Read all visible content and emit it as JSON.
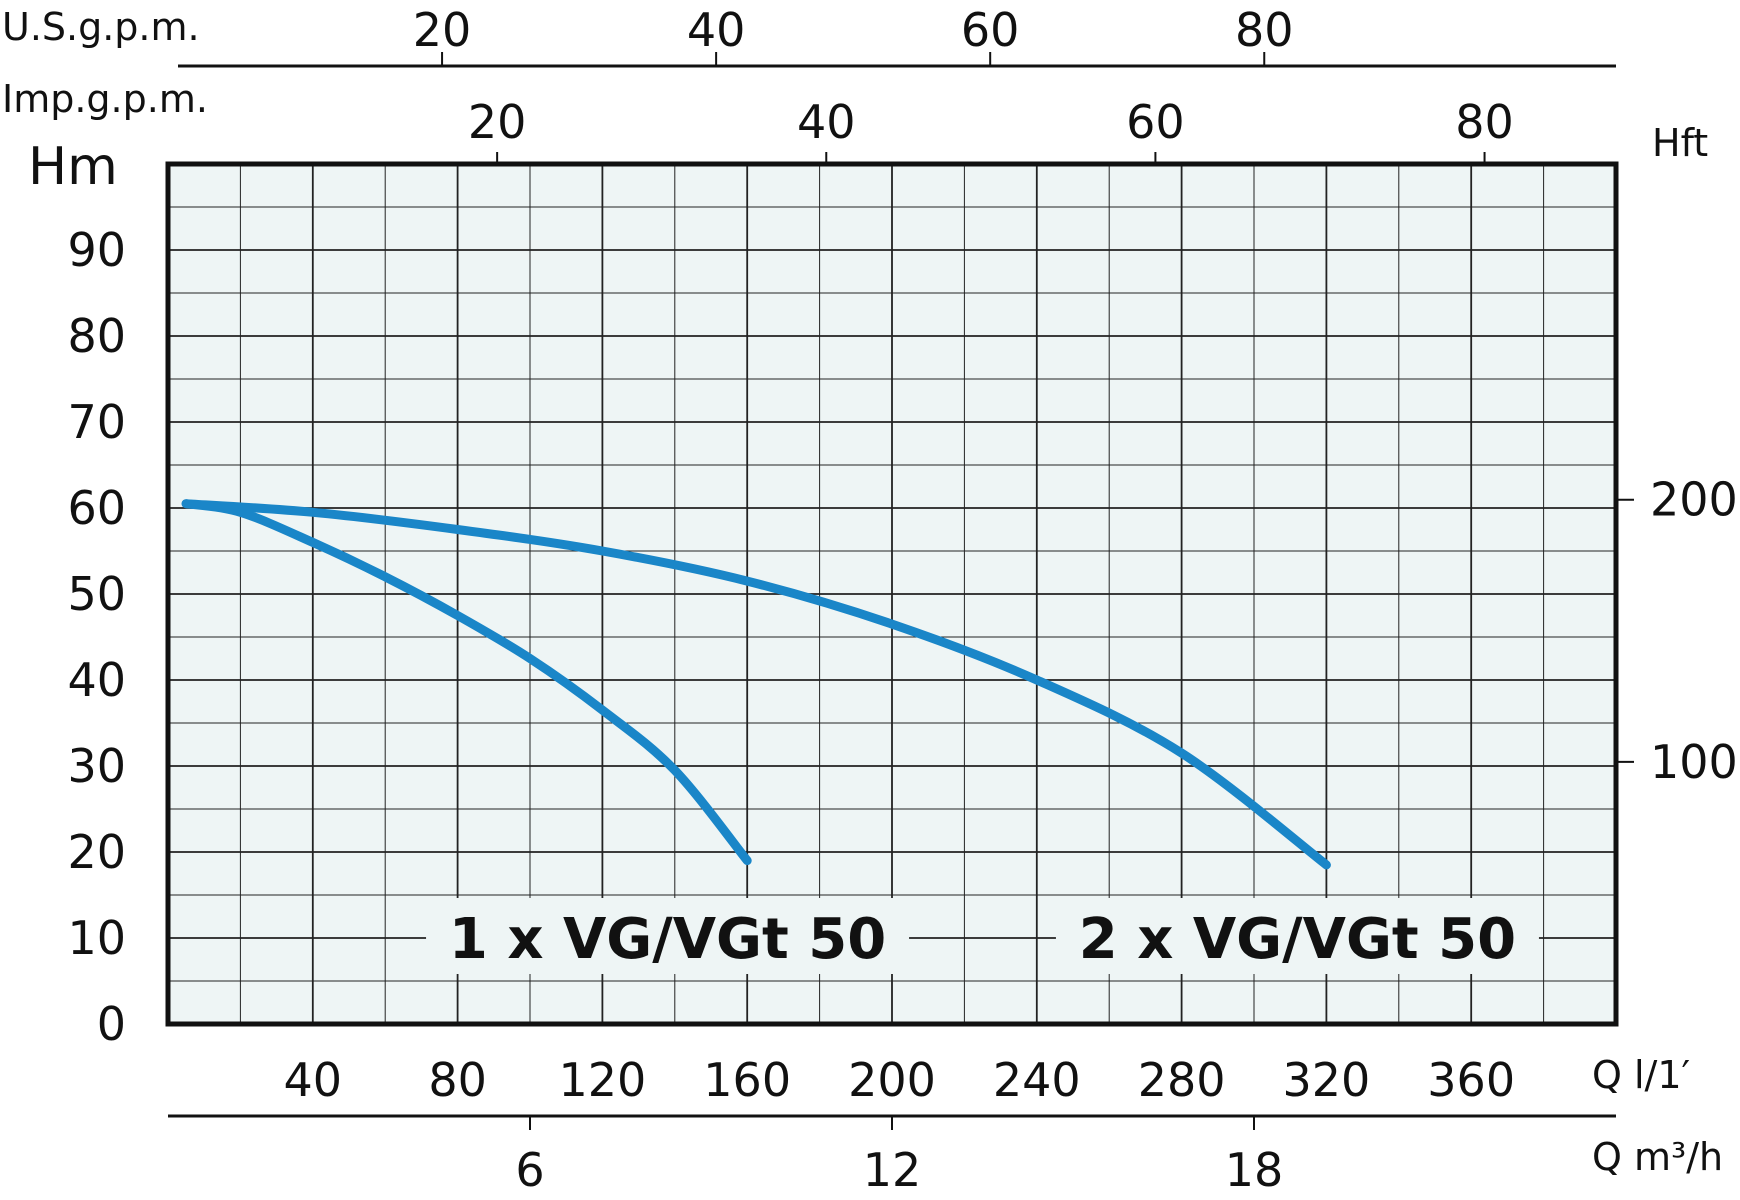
{
  "chart_data": {
    "type": "line",
    "grid": true,
    "x_primary": {
      "unit_label": "Q l/1′",
      "ticks": [
        40,
        80,
        120,
        160,
        200,
        240,
        280,
        320,
        360
      ],
      "range": [
        0,
        400
      ]
    },
    "x_m3h": {
      "unit_label": "Q m³/h",
      "ticks": [
        6,
        12,
        18
      ]
    },
    "x_usgpm": {
      "unit_label": "U.S.g.p.m.",
      "ticks": [
        20,
        40,
        60,
        80
      ]
    },
    "x_impgpm": {
      "unit_label": "Imp.g.p.m.",
      "ticks": [
        20,
        40,
        60,
        80
      ]
    },
    "y_primary": {
      "unit_label": "Hm",
      "ticks": [
        0,
        10,
        20,
        30,
        40,
        50,
        60,
        70,
        80,
        90
      ],
      "range": [
        0,
        100
      ]
    },
    "y_feet": {
      "unit_label": "Hft",
      "ticks": [
        100,
        200
      ]
    },
    "series": [
      {
        "name": "1 x VG/VGt 50",
        "color": "#1a86c8",
        "x": [
          5,
          20,
          40,
          60,
          80,
          100,
          120,
          140,
          160
        ],
        "y": [
          60.5,
          59.5,
          56,
          52,
          47.5,
          42.5,
          36.5,
          29.5,
          19
        ]
      },
      {
        "name": "2 x VG/VGt 50",
        "color": "#1a86c8",
        "x": [
          5,
          40,
          80,
          120,
          160,
          200,
          240,
          280,
          320
        ],
        "y": [
          60.5,
          59.5,
          57.5,
          55,
          51.5,
          46.5,
          40,
          31.5,
          18.5
        ]
      }
    ]
  }
}
